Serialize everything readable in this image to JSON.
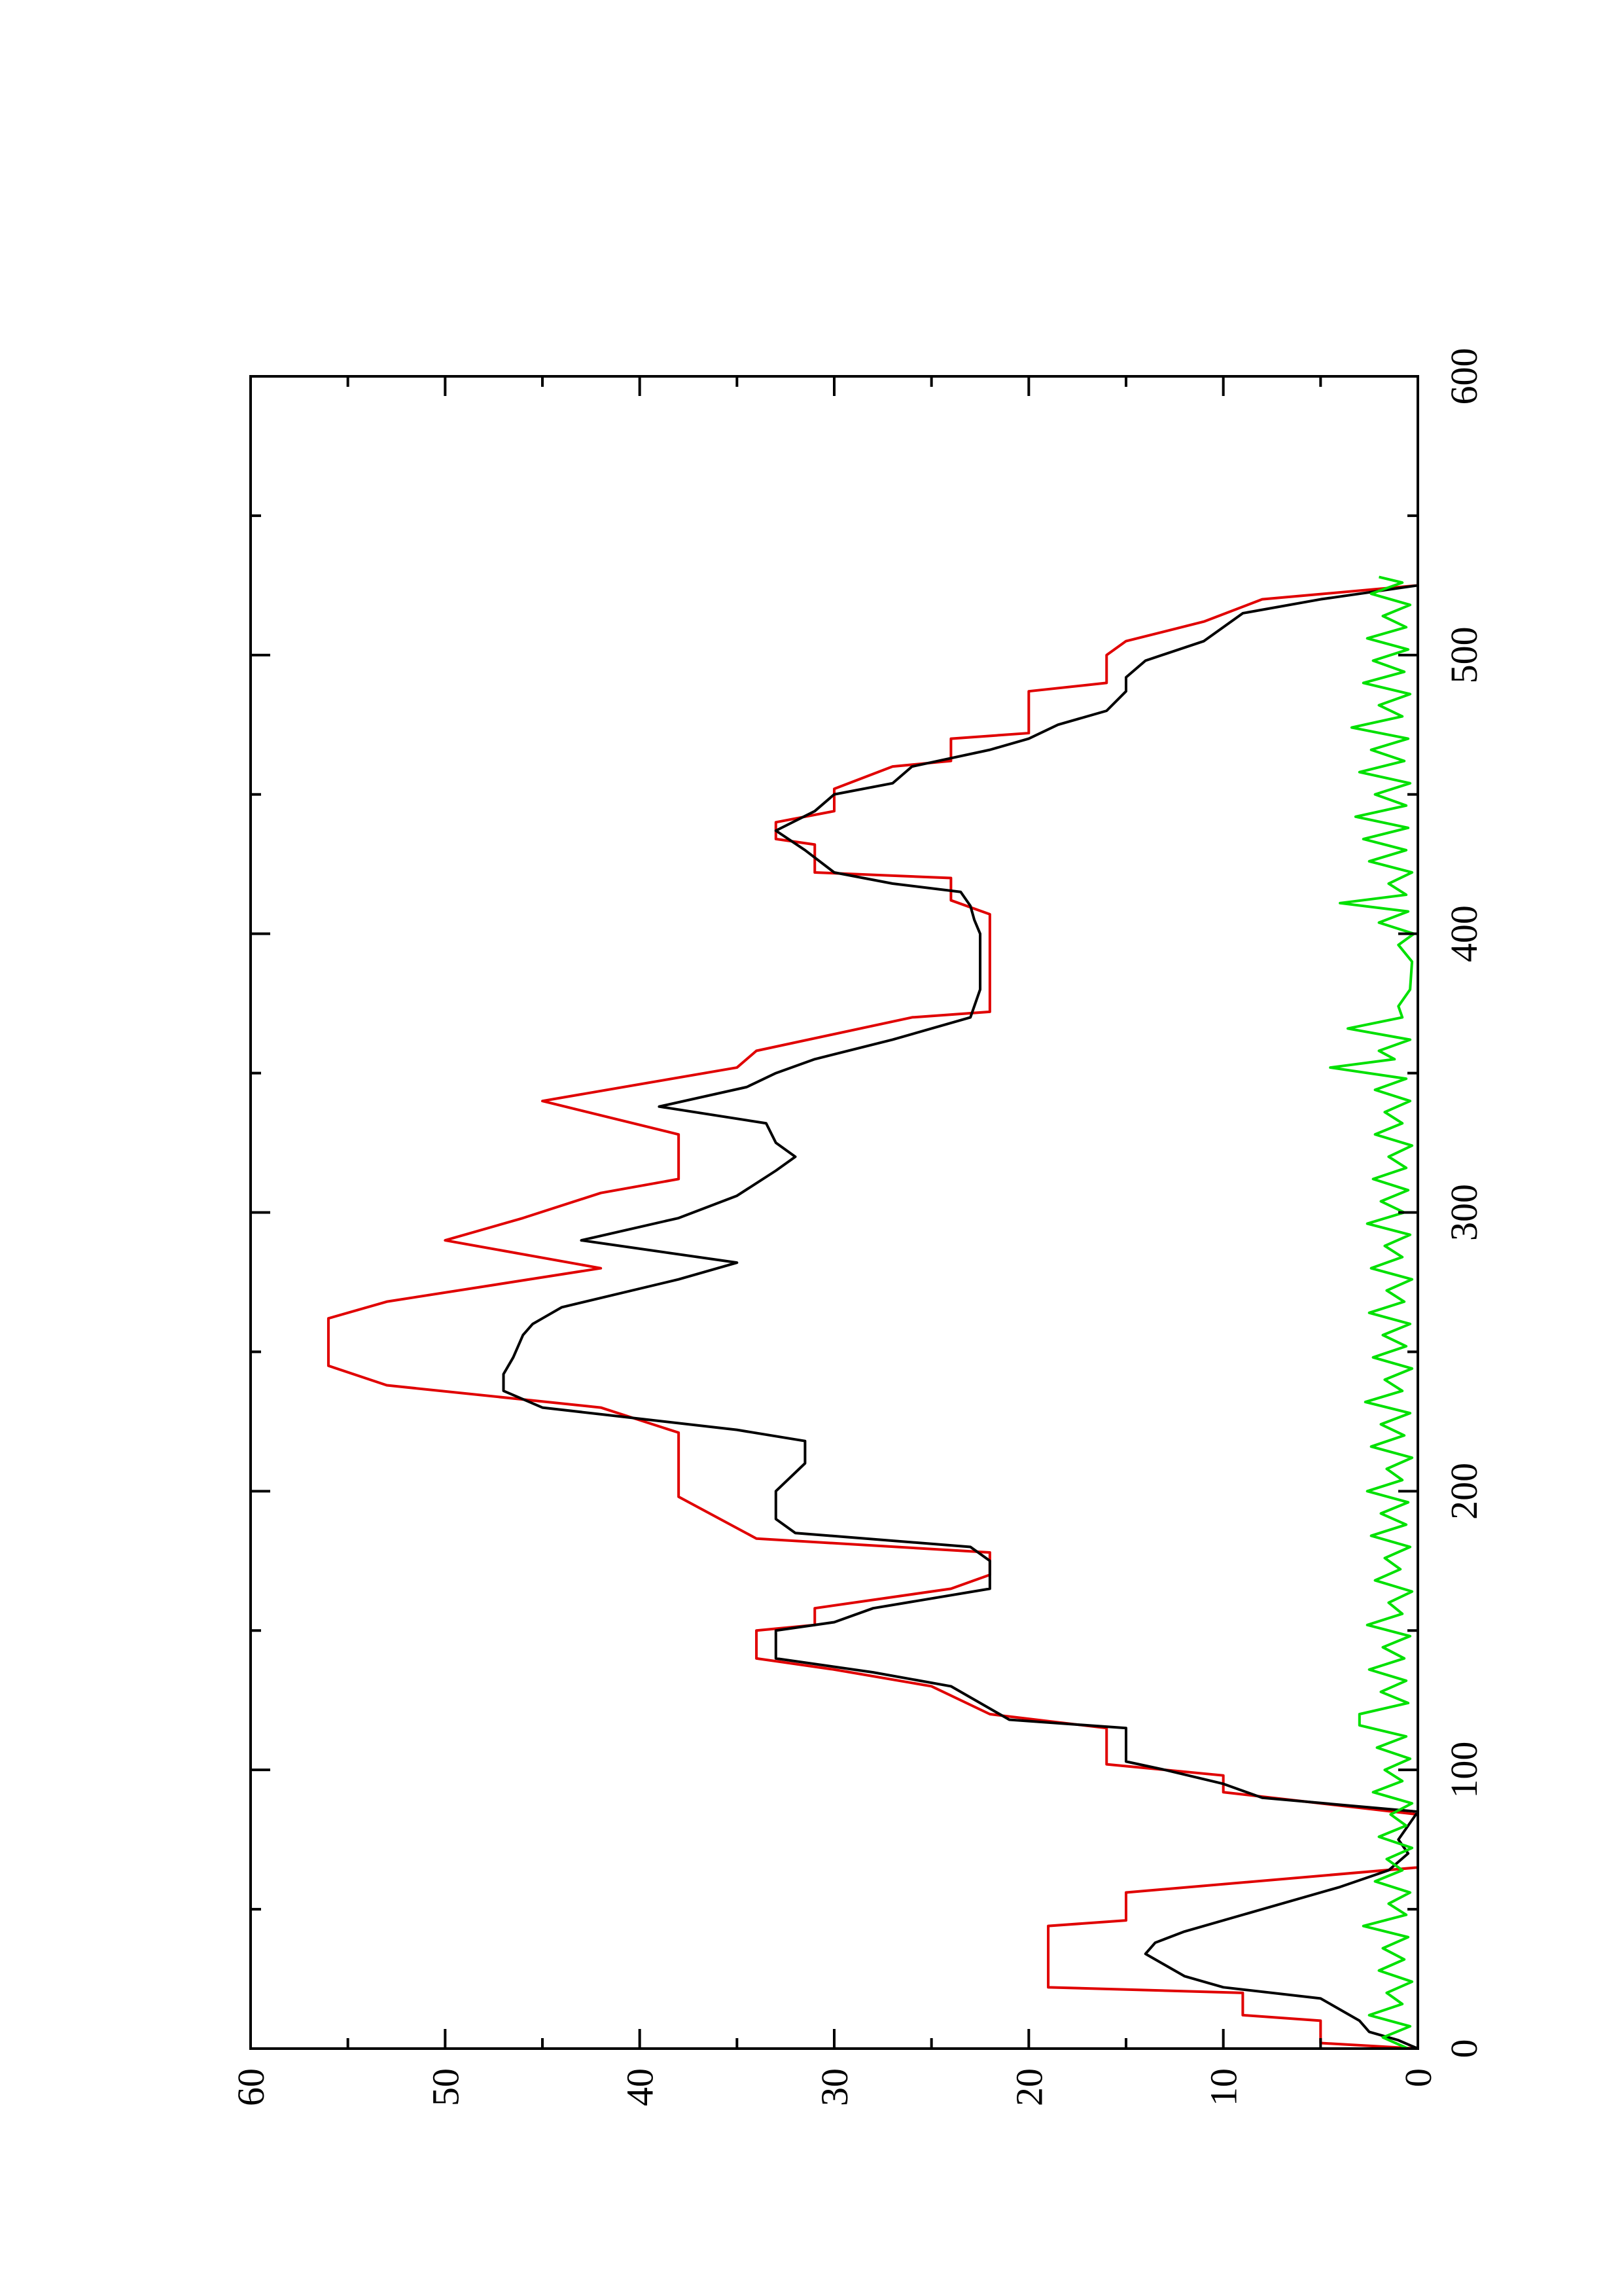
{
  "chart_data": {
    "type": "line",
    "orientation": "rotated-90-ccw",
    "title": "",
    "xlabel": "",
    "ylabel": "",
    "xlim": [
      0,
      600
    ],
    "ylim": [
      0,
      60
    ],
    "x_ticks": [
      0,
      100,
      200,
      300,
      400,
      500,
      600
    ],
    "x_tick_labels": [
      "0",
      "100",
      "200",
      "300",
      "400",
      "500",
      "600"
    ],
    "y_ticks": [
      0,
      10,
      20,
      30,
      40,
      50,
      60
    ],
    "y_tick_labels": [
      "0",
      "10",
      "20",
      "30",
      "40",
      "50",
      "60"
    ],
    "grid": false,
    "legend": "none",
    "series": [
      {
        "color": "#e00000",
        "points": [
          [
            0,
            0
          ],
          [
            2,
            5
          ],
          [
            10,
            5
          ],
          [
            12,
            9
          ],
          [
            20,
            9
          ],
          [
            22,
            19
          ],
          [
            44,
            19
          ],
          [
            46,
            15
          ],
          [
            56,
            15
          ],
          [
            65,
            0
          ],
          [
            66,
            0
          ],
          [
            68,
            0
          ],
          [
            75,
            0
          ],
          [
            80,
            0
          ],
          [
            84,
            0
          ],
          [
            92,
            10
          ],
          [
            98,
            10
          ],
          [
            100,
            13
          ],
          [
            102,
            16
          ],
          [
            115,
            16
          ],
          [
            120,
            22
          ],
          [
            130,
            25
          ],
          [
            136,
            30
          ],
          [
            140,
            34
          ],
          [
            150,
            34
          ],
          [
            152,
            31
          ],
          [
            158,
            31
          ],
          [
            165,
            24
          ],
          [
            170,
            22
          ],
          [
            178,
            22
          ],
          [
            183,
            34
          ],
          [
            198,
            38
          ],
          [
            221,
            38
          ],
          [
            230,
            42
          ],
          [
            238,
            53
          ],
          [
            245,
            56
          ],
          [
            262,
            56
          ],
          [
            268,
            53
          ],
          [
            280,
            42
          ],
          [
            290,
            50
          ],
          [
            298,
            46
          ],
          [
            307,
            42
          ],
          [
            312,
            38
          ],
          [
            328,
            38
          ],
          [
            340,
            45
          ],
          [
            352,
            35
          ],
          [
            358,
            34
          ],
          [
            370,
            26
          ],
          [
            372,
            22
          ],
          [
            407,
            22
          ],
          [
            412,
            24
          ],
          [
            420,
            24
          ],
          [
            422,
            31
          ],
          [
            432,
            31
          ],
          [
            434,
            33
          ],
          [
            440,
            33
          ],
          [
            444,
            30
          ],
          [
            452,
            30
          ],
          [
            460,
            27
          ],
          [
            462,
            24
          ],
          [
            470,
            24
          ],
          [
            472,
            20
          ],
          [
            487,
            20
          ],
          [
            490,
            16
          ],
          [
            500,
            16
          ],
          [
            505,
            15
          ],
          [
            512,
            11
          ],
          [
            520,
            8
          ],
          [
            525,
            0
          ],
          [
            528,
            0
          ]
        ]
      },
      {
        "color": "#000000",
        "points": [
          [
            0,
            0
          ],
          [
            3,
            1
          ],
          [
            6,
            2.5
          ],
          [
            10,
            3
          ],
          [
            14,
            4
          ],
          [
            18,
            5
          ],
          [
            22,
            10
          ],
          [
            26,
            12
          ],
          [
            30,
            13
          ],
          [
            34,
            14
          ],
          [
            38,
            13.5
          ],
          [
            42,
            12
          ],
          [
            50,
            8
          ],
          [
            58,
            4
          ],
          [
            64,
            1.5
          ],
          [
            70,
            0.5
          ],
          [
            75,
            1
          ],
          [
            80,
            0.5
          ],
          [
            85,
            0
          ],
          [
            90,
            8
          ],
          [
            95,
            10
          ],
          [
            100,
            13
          ],
          [
            103,
            15
          ],
          [
            115,
            15
          ],
          [
            118,
            21
          ],
          [
            130,
            24
          ],
          [
            135,
            28
          ],
          [
            140,
            33
          ],
          [
            150,
            33
          ],
          [
            153,
            30
          ],
          [
            158,
            28
          ],
          [
            165,
            22
          ],
          [
            175,
            22
          ],
          [
            180,
            23
          ],
          [
            185,
            32
          ],
          [
            190,
            33
          ],
          [
            200,
            33
          ],
          [
            210,
            31.5
          ],
          [
            218,
            31.5
          ],
          [
            222,
            35
          ],
          [
            230,
            45
          ],
          [
            236,
            47
          ],
          [
            242,
            47
          ],
          [
            248,
            46.5
          ],
          [
            256,
            46
          ],
          [
            260,
            45.5
          ],
          [
            262,
            45
          ],
          [
            266,
            44
          ],
          [
            276,
            38
          ],
          [
            282,
            35
          ],
          [
            290,
            43
          ],
          [
            298,
            38
          ],
          [
            306,
            35
          ],
          [
            315,
            33
          ],
          [
            320,
            32
          ],
          [
            325,
            33
          ],
          [
            332,
            33.5
          ],
          [
            338,
            39
          ],
          [
            345,
            34.5
          ],
          [
            350,
            33
          ],
          [
            355,
            31
          ],
          [
            362,
            27
          ],
          [
            370,
            23
          ],
          [
            380,
            22.5
          ],
          [
            400,
            22.5
          ],
          [
            405,
            22.8
          ],
          [
            410,
            23
          ],
          [
            415,
            23.5
          ],
          [
            418,
            27
          ],
          [
            422,
            30
          ],
          [
            430,
            31.5
          ],
          [
            437,
            33
          ],
          [
            444,
            31
          ],
          [
            450,
            30
          ],
          [
            454,
            27
          ],
          [
            460,
            26
          ],
          [
            466,
            22
          ],
          [
            470,
            20
          ],
          [
            475,
            18.5
          ],
          [
            480,
            16
          ],
          [
            487,
            15
          ],
          [
            492,
            15
          ],
          [
            498,
            14
          ],
          [
            505,
            11
          ],
          [
            515,
            9
          ],
          [
            520,
            5
          ],
          [
            525,
            0
          ],
          [
            528,
            0
          ]
        ]
      },
      {
        "color": "#00e000",
        "points": [
          [
            0,
            0.5
          ],
          [
            4,
            1.8
          ],
          [
            8,
            0.4
          ],
          [
            12,
            2.5
          ],
          [
            16,
            0.8
          ],
          [
            20,
            1.6
          ],
          [
            24,
            0.3
          ],
          [
            28,
            2
          ],
          [
            32,
            0.7
          ],
          [
            36,
            1.8
          ],
          [
            40,
            0.5
          ],
          [
            44,
            2.8
          ],
          [
            48,
            0.6
          ],
          [
            52,
            1.5
          ],
          [
            56,
            0.4
          ],
          [
            60,
            2.2
          ],
          [
            64,
            0.8
          ],
          [
            68,
            1.6
          ],
          [
            72,
            0.3
          ],
          [
            76,
            2
          ],
          [
            80,
            0.6
          ],
          [
            84,
            1.4
          ],
          [
            88,
            0.3
          ],
          [
            92,
            2.3
          ],
          [
            96,
            0.8
          ],
          [
            100,
            1.7
          ],
          [
            104,
            0.4
          ],
          [
            108,
            2.1
          ],
          [
            112,
            0.6
          ],
          [
            116,
            3
          ],
          [
            120,
            3
          ],
          [
            124,
            0.5
          ],
          [
            128,
            1.9
          ],
          [
            132,
            0.6
          ],
          [
            136,
            2.5
          ],
          [
            140,
            0.7
          ],
          [
            144,
            1.8
          ],
          [
            148,
            0.4
          ],
          [
            152,
            2.6
          ],
          [
            156,
            0.8
          ],
          [
            160,
            1.5
          ],
          [
            164,
            0.3
          ],
          [
            168,
            2.2
          ],
          [
            172,
            0.9
          ],
          [
            176,
            1.7
          ],
          [
            180,
            0.4
          ],
          [
            184,
            2.4
          ],
          [
            188,
            0.6
          ],
          [
            192,
            1.9
          ],
          [
            196,
            0.5
          ],
          [
            200,
            2.6
          ],
          [
            204,
            0.8
          ],
          [
            208,
            1.6
          ],
          [
            212,
            0.3
          ],
          [
            216,
            2.4
          ],
          [
            220,
            0.7
          ],
          [
            224,
            1.9
          ],
          [
            228,
            0.4
          ],
          [
            232,
            2.7
          ],
          [
            236,
            0.8
          ],
          [
            240,
            1.7
          ],
          [
            244,
            0.3
          ],
          [
            248,
            2.3
          ],
          [
            252,
            0.6
          ],
          [
            256,
            1.8
          ],
          [
            260,
            0.4
          ],
          [
            264,
            2.5
          ],
          [
            268,
            0.7
          ],
          [
            272,
            1.6
          ],
          [
            276,
            0.3
          ],
          [
            280,
            2.4
          ],
          [
            284,
            0.8
          ],
          [
            288,
            1.7
          ],
          [
            292,
            0.4
          ],
          [
            296,
            2.6
          ],
          [
            300,
            0.7
          ],
          [
            304,
            1.9
          ],
          [
            308,
            0.5
          ],
          [
            312,
            2.3
          ],
          [
            316,
            0.6
          ],
          [
            320,
            1.5
          ],
          [
            324,
            0.3
          ],
          [
            328,
            2.2
          ],
          [
            332,
            0.8
          ],
          [
            336,
            1.7
          ],
          [
            340,
            0.4
          ],
          [
            344,
            2.2
          ],
          [
            348,
            0.6
          ],
          [
            352,
            4.5
          ],
          [
            355,
            1.2
          ],
          [
            358,
            2
          ],
          [
            362,
            0.4
          ],
          [
            366,
            3.6
          ],
          [
            370,
            0.8
          ],
          [
            374,
            1
          ],
          [
            380,
            0.4
          ],
          [
            390,
            0.3
          ],
          [
            396,
            1
          ],
          [
            400,
            0.2
          ],
          [
            404,
            2
          ],
          [
            408,
            0.5
          ],
          [
            411,
            4
          ],
          [
            414,
            0.6
          ],
          [
            418,
            1.5
          ],
          [
            422,
            0.3
          ],
          [
            426,
            2.5
          ],
          [
            430,
            0.6
          ],
          [
            434,
            2.8
          ],
          [
            438,
            0.5
          ],
          [
            442,
            3.2
          ],
          [
            446,
            0.6
          ],
          [
            450,
            2.2
          ],
          [
            454,
            0.4
          ],
          [
            458,
            3
          ],
          [
            462,
            0.7
          ],
          [
            466,
            2.4
          ],
          [
            470,
            0.5
          ],
          [
            474,
            3.4
          ],
          [
            478,
            0.8
          ],
          [
            482,
            2
          ],
          [
            486,
            0.4
          ],
          [
            490,
            2.8
          ],
          [
            494,
            0.7
          ],
          [
            498,
            2.3
          ],
          [
            502,
            0.5
          ],
          [
            506,
            2.6
          ],
          [
            510,
            0.6
          ],
          [
            514,
            1.8
          ],
          [
            518,
            0.4
          ],
          [
            522,
            2.4
          ],
          [
            526,
            0.8
          ],
          [
            528,
            2
          ]
        ]
      }
    ]
  }
}
